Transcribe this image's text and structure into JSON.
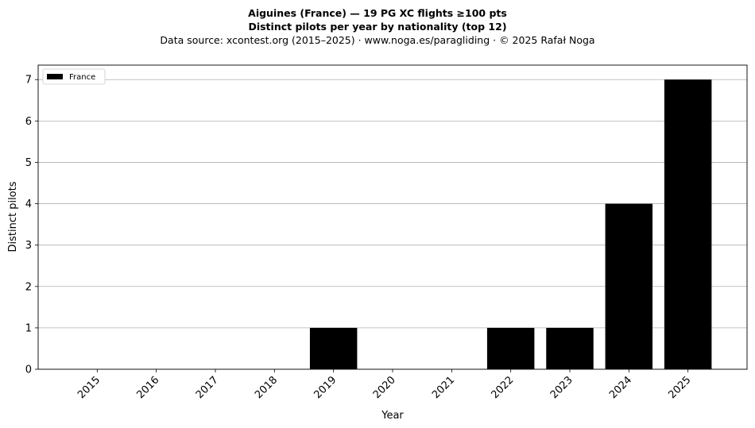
{
  "chart_data": {
    "type": "bar",
    "title": "Aiguines (France)  —  19 PG XC flights ≥100 pts",
    "subtitle": "Distinct pilots per year by nationality (top 12)",
    "source_line": "Data source: xcontest.org (2015–2025)  ·  www.noga.es/paragliding  ·  © 2025 Rafał Noga",
    "xlabel": "Year",
    "ylabel": "Distinct pilots",
    "categories": [
      "2015",
      "2016",
      "2017",
      "2018",
      "2019",
      "2020",
      "2021",
      "2022",
      "2023",
      "2024",
      "2025"
    ],
    "series": [
      {
        "name": "France",
        "color": "#000000",
        "values": [
          0,
          0,
          0,
          0,
          1,
          0,
          0,
          1,
          1,
          4,
          7
        ]
      }
    ],
    "ylim": [
      0,
      7.35
    ],
    "yticks": [
      0,
      1,
      2,
      3,
      4,
      5,
      6,
      7
    ],
    "grid": "horizontal",
    "legend_position": "top-left"
  }
}
